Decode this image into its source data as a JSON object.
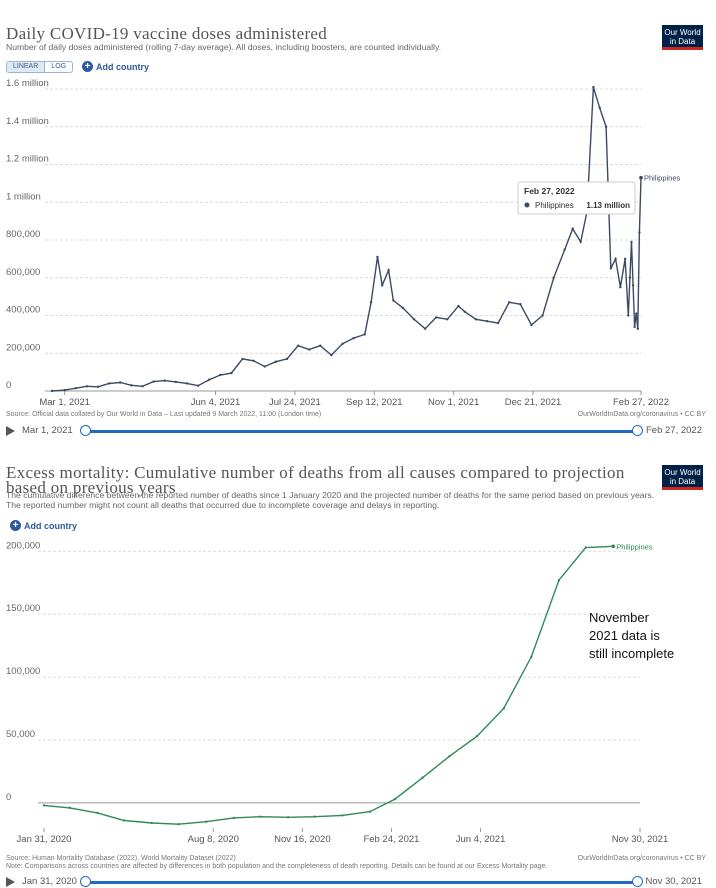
{
  "chart_data": [
    {
      "type": "line",
      "title": "Daily COVID-19 vaccine doses administered",
      "subtitle": "Number of daily doses administered (rolling 7-day average). All doses, including boosters, are counted individually.",
      "scale_toggle": [
        "LINEAR",
        "LOG"
      ],
      "scale_selected": "LINEAR",
      "add_country": "Add country",
      "logo": [
        "Our World",
        "in Data"
      ],
      "y_ticks": [
        {
          "value": 0,
          "label": "0"
        },
        {
          "value": 200000,
          "label": "200,000"
        },
        {
          "value": 400000,
          "label": "400,000"
        },
        {
          "value": 600000,
          "label": "600,000"
        },
        {
          "value": 800000,
          "label": "800,000"
        },
        {
          "value": 1000000,
          "label": "1 million"
        },
        {
          "value": 1200000,
          "label": "1.2 million"
        },
        {
          "value": 1400000,
          "label": "1.4 million"
        },
        {
          "value": 1600000,
          "label": "1.6 million"
        }
      ],
      "x_ticks": [
        {
          "value": "2021-03-01",
          "label": "Mar 1, 2021"
        },
        {
          "value": "2021-06-04",
          "label": "Jun 4, 2021"
        },
        {
          "value": "2021-07-24",
          "label": "Jul 24, 2021"
        },
        {
          "value": "2021-09-12",
          "label": "Sep 12, 2021"
        },
        {
          "value": "2021-11-01",
          "label": "Nov 1, 2021"
        },
        {
          "value": "2021-12-21",
          "label": "Dec 21, 2021"
        },
        {
          "value": "2022-02-27",
          "label": "Feb 27, 2022"
        }
      ],
      "xlim": [
        "2021-02-21",
        "2022-02-27"
      ],
      "ylim": [
        0,
        1600000
      ],
      "grid": "horizontal",
      "series": [
        {
          "name": "Philippines",
          "color": "#3a4a63",
          "points": [
            [
              "2021-02-21",
              0
            ],
            [
              "2021-03-01",
              5000
            ],
            [
              "2021-03-08",
              15000
            ],
            [
              "2021-03-15",
              25000
            ],
            [
              "2021-03-22",
              22000
            ],
            [
              "2021-03-29",
              40000
            ],
            [
              "2021-04-05",
              45000
            ],
            [
              "2021-04-12",
              30000
            ],
            [
              "2021-04-19",
              25000
            ],
            [
              "2021-04-26",
              50000
            ],
            [
              "2021-05-03",
              55000
            ],
            [
              "2021-05-10",
              48000
            ],
            [
              "2021-05-17",
              40000
            ],
            [
              "2021-05-24",
              28000
            ],
            [
              "2021-05-31",
              60000
            ],
            [
              "2021-06-07",
              85000
            ],
            [
              "2021-06-14",
              95000
            ],
            [
              "2021-06-21",
              170000
            ],
            [
              "2021-06-28",
              160000
            ],
            [
              "2021-07-05",
              130000
            ],
            [
              "2021-07-12",
              155000
            ],
            [
              "2021-07-19",
              170000
            ],
            [
              "2021-07-26",
              240000
            ],
            [
              "2021-08-02",
              220000
            ],
            [
              "2021-08-09",
              240000
            ],
            [
              "2021-08-16",
              190000
            ],
            [
              "2021-08-23",
              250000
            ],
            [
              "2021-08-30",
              280000
            ],
            [
              "2021-09-06",
              300000
            ],
            [
              "2021-09-10",
              470000
            ],
            [
              "2021-09-14",
              710000
            ],
            [
              "2021-09-17",
              560000
            ],
            [
              "2021-09-21",
              640000
            ],
            [
              "2021-09-24",
              480000
            ],
            [
              "2021-09-30",
              440000
            ],
            [
              "2021-10-07",
              380000
            ],
            [
              "2021-10-14",
              330000
            ],
            [
              "2021-10-21",
              390000
            ],
            [
              "2021-10-28",
              380000
            ],
            [
              "2021-11-04",
              450000
            ],
            [
              "2021-11-08",
              420000
            ],
            [
              "2021-11-15",
              380000
            ],
            [
              "2021-11-22",
              370000
            ],
            [
              "2021-11-29",
              360000
            ],
            [
              "2021-12-06",
              470000
            ],
            [
              "2021-12-13",
              460000
            ],
            [
              "2021-12-20",
              350000
            ],
            [
              "2021-12-27",
              400000
            ],
            [
              "2022-01-03",
              600000
            ],
            [
              "2022-01-10",
              750000
            ],
            [
              "2022-01-15",
              860000
            ],
            [
              "2022-01-20",
              790000
            ],
            [
              "2022-01-24",
              950000
            ],
            [
              "2022-01-28",
              1610000
            ],
            [
              "2022-02-01",
              1500000
            ],
            [
              "2022-02-05",
              1400000
            ],
            [
              "2022-02-08",
              650000
            ],
            [
              "2022-02-11",
              700000
            ],
            [
              "2022-02-14",
              550000
            ],
            [
              "2022-02-17",
              700000
            ],
            [
              "2022-02-19",
              400000
            ],
            [
              "2022-02-20",
              600000
            ],
            [
              "2022-02-21",
              790000
            ],
            [
              "2022-02-22",
              560000
            ],
            [
              "2022-02-23",
              340000
            ],
            [
              "2022-02-24",
              410000
            ],
            [
              "2022-02-25",
              330000
            ],
            [
              "2022-02-26",
              840000
            ],
            [
              "2022-02-27",
              1130000
            ]
          ]
        }
      ],
      "tooltip": {
        "date": "Feb 27, 2022",
        "entity": "Philippines",
        "value": "1.13 million"
      },
      "end_label": "Philippines",
      "source": "Source: Official data collated by Our World in Data – Last updated 9 March 2022, 11:00 (London time)",
      "source_right": "OurWorldInData.org/coronavirus • CC BY",
      "timeline": {
        "start": "Mar 1, 2021",
        "end": "Feb 27, 2022"
      }
    },
    {
      "type": "line",
      "title": "Excess mortality: Cumulative number of deaths from all causes compared to projection based on previous years",
      "subtitle": "The cumulative difference between the reported number of deaths since 1 January 2020 and the projected number of deaths for the same period based on previous years. The reported number might not count all deaths that occurred due to incomplete coverage and delays in reporting.",
      "add_country": "Add country",
      "logo": [
        "Our World",
        "in Data"
      ],
      "y_ticks": [
        {
          "value": 0,
          "label": "0"
        },
        {
          "value": 50000,
          "label": "50,000"
        },
        {
          "value": 100000,
          "label": "100,000"
        },
        {
          "value": 150000,
          "label": "150,000"
        },
        {
          "value": 200000,
          "label": "200,000"
        }
      ],
      "x_ticks": [
        {
          "value": "2020-01-31",
          "label": "Jan 31, 2020"
        },
        {
          "value": "2020-08-08",
          "label": "Aug 8, 2020"
        },
        {
          "value": "2020-11-16",
          "label": "Nov 16, 2020"
        },
        {
          "value": "2021-02-24",
          "label": "Feb 24, 2021"
        },
        {
          "value": "2021-06-04",
          "label": "Jun 4, 2021"
        },
        {
          "value": "2021-11-30",
          "label": "Nov 30, 2021"
        }
      ],
      "xlim": [
        "2020-01-31",
        "2021-11-30"
      ],
      "ylim": [
        -20000,
        205000
      ],
      "grid": "horizontal",
      "series": [
        {
          "name": "Philippines",
          "color": "#2e8b57",
          "points": [
            [
              "2020-01-31",
              -2000
            ],
            [
              "2020-02-29",
              -4000
            ],
            [
              "2020-03-31",
              -8000
            ],
            [
              "2020-04-30",
              -14000
            ],
            [
              "2020-05-31",
              -16000
            ],
            [
              "2020-06-30",
              -17000
            ],
            [
              "2020-07-31",
              -15000
            ],
            [
              "2020-08-31",
              -12000
            ],
            [
              "2020-09-30",
              -11000
            ],
            [
              "2020-10-31",
              -11500
            ],
            [
              "2020-11-30",
              -11000
            ],
            [
              "2020-12-31",
              -10000
            ],
            [
              "2021-01-31",
              -7000
            ],
            [
              "2021-02-28",
              3000
            ],
            [
              "2021-03-31",
              20000
            ],
            [
              "2021-04-30",
              37000
            ],
            [
              "2021-05-31",
              53000
            ],
            [
              "2021-06-30",
              75000
            ],
            [
              "2021-07-31",
              116000
            ],
            [
              "2021-08-31",
              177000
            ],
            [
              "2021-09-30",
              203000
            ],
            [
              "2021-10-31",
              204000
            ]
          ]
        }
      ],
      "end_label": "Philippines",
      "annotation": [
        "November",
        "2021 data is",
        "still incomplete"
      ],
      "source": "Source: Human Mortality Database (2022), World Mortality Dataset (2022)",
      "note": "Note: Comparisons across countries are affected by differences in both population and the completeness of death reporting. Details can be found at our Excess Mortality page.",
      "source_right": "OurWorldInData.org/coronavirus • CC BY",
      "timeline": {
        "start": "Jan 31, 2020",
        "end": "Nov 30, 2021"
      }
    }
  ]
}
